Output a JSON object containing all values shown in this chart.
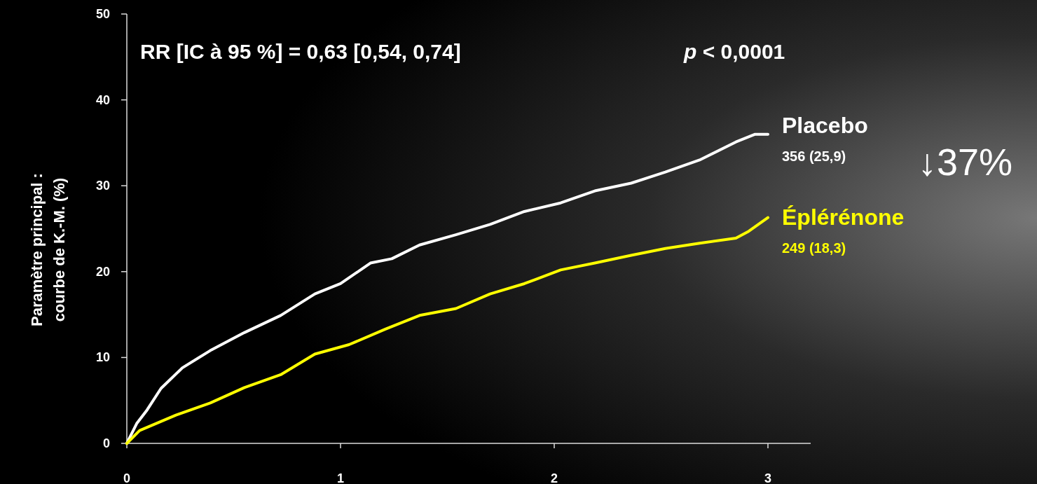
{
  "chart_data": {
    "type": "line",
    "ylabel": "Paramètre principal : courbe de K.-M. (%)",
    "xlim": [
      0,
      3.2
    ],
    "xticks": [
      0,
      1,
      2,
      3
    ],
    "ylim": [
      0,
      50
    ],
    "yticks": [
      0,
      10,
      20,
      30,
      40,
      50
    ],
    "grid": false,
    "marker": "none",
    "line_style": "solid",
    "series": [
      {
        "name": "Placebo",
        "color": "#ffffff",
        "x": [
          0,
          0.046,
          0.095,
          0.16,
          0.26,
          0.39,
          0.55,
          0.72,
          0.88,
          1.0,
          1.14,
          1.24,
          1.37,
          1.54,
          1.7,
          1.86,
          2.03,
          2.19,
          2.36,
          2.52,
          2.68,
          2.85,
          2.94,
          3.0
        ],
        "values": [
          0,
          2.3,
          3.9,
          6.4,
          8.8,
          10.8,
          12.9,
          14.9,
          17.4,
          18.6,
          21.0,
          21.5,
          23.1,
          24.3,
          25.5,
          27.0,
          28.0,
          29.4,
          30.3,
          31.6,
          33.0,
          35.1,
          36.0,
          36.0
        ]
      },
      {
        "name": "Éplérénone",
        "color": "#ffff00",
        "x": [
          0,
          0.06,
          0.23,
          0.39,
          0.55,
          0.72,
          0.88,
          1.04,
          1.21,
          1.37,
          1.54,
          1.7,
          1.86,
          2.03,
          2.19,
          2.36,
          2.52,
          2.68,
          2.85,
          2.91,
          3.0
        ],
        "values": [
          0,
          1.5,
          3.3,
          4.7,
          6.5,
          8.0,
          10.4,
          11.5,
          13.3,
          14.9,
          15.7,
          17.4,
          18.6,
          20.2,
          21.0,
          21.9,
          22.7,
          23.3,
          23.9,
          24.7,
          26.3
        ]
      }
    ],
    "annotations": [
      "356 (25,9)",
      "249 (18,3)",
      "RR [IC à 95 %] = 0,63 [0,54, 0,74]",
      "p < 0,0001",
      "↓37%"
    ]
  }
}
